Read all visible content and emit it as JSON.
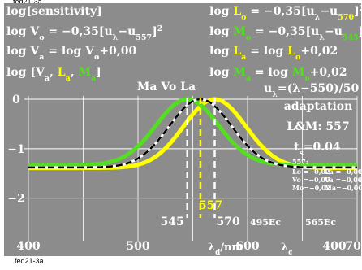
{
  "top_tag": "feq21-3a",
  "bottom_tag": "feq21-3a",
  "colors": {
    "panel": "#8c8c8c",
    "white": "#ffffff",
    "yellow": "#ffff00",
    "green": "#55dd22",
    "black": "#000000"
  },
  "formulas_left": [
    {
      "id": "f1",
      "text": "log[sensitivity]"
    },
    {
      "id": "f2",
      "parts": [
        "log V",
        "o",
        " = −0,35[u",
        "λ",
        "−u",
        "557",
        "]",
        "2"
      ]
    },
    {
      "id": "f3",
      "parts": [
        "log V",
        "a",
        " = log V",
        "o",
        "+0,00"
      ]
    },
    {
      "id": "f4",
      "parts": [
        "log [V",
        "a",
        ", ",
        "L",
        "a",
        ", ",
        "M",
        "a",
        "]"
      ]
    }
  ],
  "formulas_right": [
    {
      "id": "g1",
      "parts": [
        "log ",
        "L",
        "o",
        " = −0,35[u",
        "λ",
        "−u",
        "570",
        "]",
        "2"
      ]
    },
    {
      "id": "g2",
      "parts": [
        "log ",
        "M",
        "o",
        " = −0,35[u",
        "λ",
        "−u",
        "545",
        "]",
        "2"
      ]
    },
    {
      "id": "g3",
      "parts": [
        "log ",
        "L",
        "a",
        " = log ",
        "L",
        "o",
        "+0,02"
      ]
    },
    {
      "id": "g4",
      "parts": [
        "log ",
        "M",
        "a",
        " = log ",
        "M",
        "o",
        "+0,02"
      ]
    }
  ],
  "u_formula": "u",
  "u_formula_sub": "λ",
  "u_formula_rest": "=(λ−550)/50",
  "peak_label": "Ma Vo La",
  "adaptation": [
    "adaptation",
    "L&M: 557",
    "t"
  ],
  "adaptation_ts_sub": "s",
  "adaptation_ts_val": "=0.04",
  "small_block": {
    "title": "557:",
    "rows": [
      [
        "Lo =−0,02",
        "La =−0,00"
      ],
      [
        "Vo =−0,00",
        "Va =−0,00"
      ],
      [
        "Mo=−0,02",
        "Ma=−0,00"
      ]
    ]
  },
  "vline_labels": {
    "l545": "545",
    "l557": "557",
    "l570": "570"
  },
  "ec_labels": [
    "495Ec",
    "565Ec"
  ],
  "x_axis_label": "λ",
  "x_axis_label_sub": "d",
  "x_axis_unit": "/nm",
  "lambda_c": "λ",
  "lambda_c_sub": "c",
  "chart_data": {
    "type": "line",
    "x": [
      400,
      410,
      420,
      430,
      440,
      450,
      460,
      470,
      480,
      490,
      500,
      510,
      520,
      530,
      540,
      545,
      550,
      557,
      560,
      570,
      580,
      590,
      600,
      610,
      620,
      630,
      640,
      650,
      660,
      670,
      680,
      690,
      700
    ],
    "xlim": [
      400,
      700
    ],
    "ylim": [
      -2.4,
      0.0
    ],
    "xticks": [
      400,
      500,
      600,
      700
    ],
    "xtick_labels": [
      "400",
      "500",
      "600",
      "700"
    ],
    "extra_xtick": "400",
    "yticks": [
      0,
      -1,
      -2
    ],
    "ytick_labels": [
      "0",
      "−1",
      "−2"
    ],
    "vlines": [
      545,
      557,
      570
    ],
    "grid": true,
    "series": [
      {
        "key": "yellow",
        "peak": 570,
        "offset": 0.0,
        "floor": -1.39
      },
      {
        "key": "green",
        "peak": 545,
        "offset": 0.0,
        "floor": -1.33
      },
      {
        "key": "white",
        "peak": 557,
        "offset": 0.0,
        "floor": -1.38
      },
      {
        "key": "black",
        "peak": 557,
        "offset": 0.0,
        "floor": -1.38
      }
    ]
  }
}
